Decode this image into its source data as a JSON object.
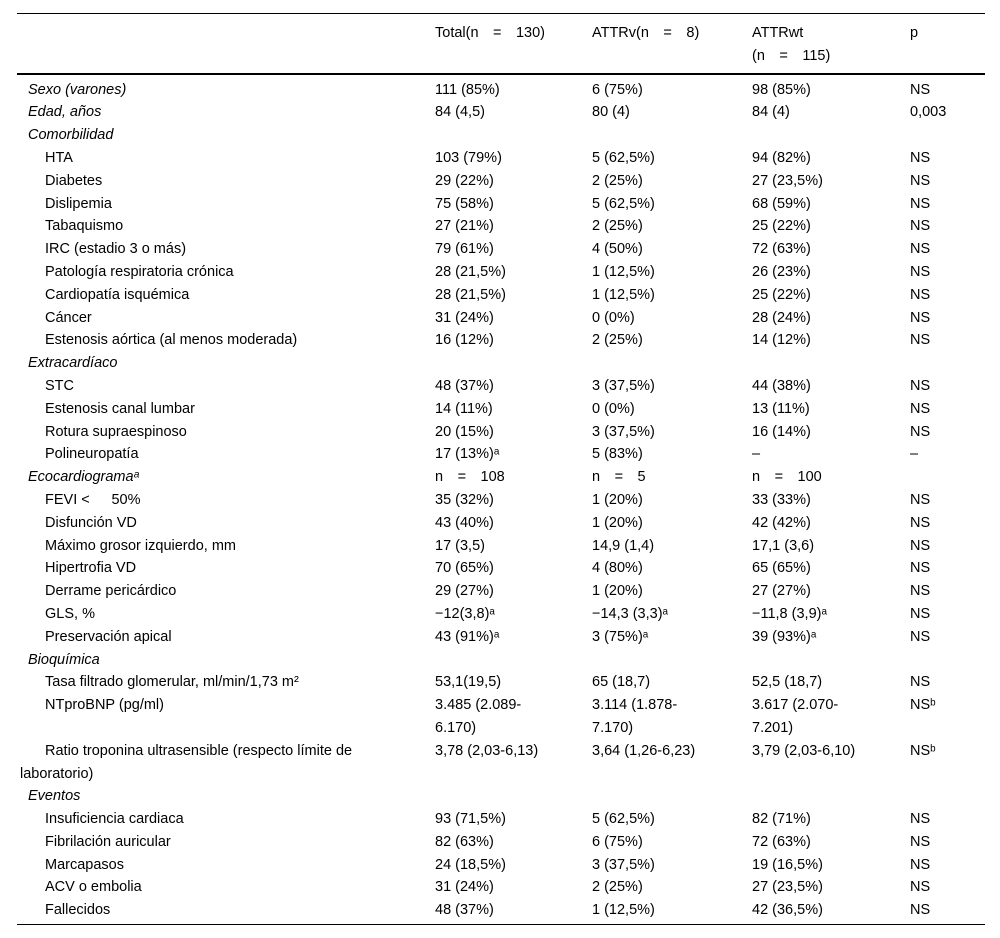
{
  "table": {
    "headers": {
      "label": "",
      "total": "Total(n  =  130)",
      "attrv": "ATTRv(n  =  8)",
      "attrwt": "ATTRwt\n(n  =  115)",
      "p": "p"
    },
    "rows": [
      {
        "label": "Sexo (varones)",
        "type": "group",
        "values": [
          "111 (85%)",
          "6 (75%)",
          "98 (85%)",
          "NS"
        ]
      },
      {
        "label": "Edad, años",
        "type": "group",
        "values": [
          "84 (4,5)",
          "80 (4)",
          "84 (4)",
          "0,003"
        ]
      },
      {
        "label": "Comorbilidad",
        "type": "group",
        "values": [
          "",
          "",
          "",
          ""
        ]
      },
      {
        "label": "HTA",
        "type": "item",
        "values": [
          "103 (79%)",
          "5 (62,5%)",
          "94 (82%)",
          "NS"
        ]
      },
      {
        "label": "Diabetes",
        "type": "item",
        "values": [
          "29 (22%)",
          "2 (25%)",
          "27 (23,5%)",
          "NS"
        ]
      },
      {
        "label": "Dislipemia",
        "type": "item",
        "values": [
          "75 (58%)",
          "5 (62,5%)",
          "68 (59%)",
          "NS"
        ]
      },
      {
        "label": "Tabaquismo",
        "type": "item",
        "values": [
          "27 (21%)",
          "2 (25%)",
          "25 (22%)",
          "NS"
        ]
      },
      {
        "label": "IRC (estadio 3 o más)",
        "type": "item",
        "values": [
          "79 (61%)",
          "4 (50%)",
          "72 (63%)",
          "NS"
        ]
      },
      {
        "label": "Patología respiratoria crónica",
        "type": "item",
        "values": [
          "28 (21,5%)",
          "1 (12,5%)",
          "26 (23%)",
          "NS"
        ]
      },
      {
        "label": "Cardiopatía isquémica",
        "type": "item",
        "values": [
          "28 (21,5%)",
          "1 (12,5%)",
          "25 (22%)",
          "NS"
        ]
      },
      {
        "label": "Cáncer",
        "type": "item",
        "values": [
          "31 (24%)",
          "0 (0%)",
          "28 (24%)",
          "NS"
        ]
      },
      {
        "label": "Estenosis aórtica (al menos moderada)",
        "type": "item",
        "values": [
          "16 (12%)",
          "2 (25%)",
          "14 (12%)",
          "NS"
        ]
      },
      {
        "label": "Extracardíaco",
        "type": "group",
        "values": [
          "",
          "",
          "",
          ""
        ]
      },
      {
        "label": "STC",
        "type": "item",
        "values": [
          "48 (37%)",
          "3 (37,5%)",
          "44 (38%)",
          "NS"
        ]
      },
      {
        "label": "Estenosis canal lumbar",
        "type": "item",
        "values": [
          "14 (11%)",
          "0 (0%)",
          "13 (11%)",
          "NS"
        ]
      },
      {
        "label": "Rotura supraespinoso",
        "type": "item",
        "values": [
          "20 (15%)",
          "3 (37,5%)",
          "16 (14%)",
          "NS"
        ]
      },
      {
        "label": "Polineuropatía",
        "type": "item",
        "values": [
          "17 (13%)ᵃ",
          "5 (83%)",
          "–",
          "–"
        ]
      },
      {
        "label": "Ecocardiogramaᵃ",
        "type": "group",
        "values": [
          "n  =  108",
          "n  =  5",
          "n  =  100",
          ""
        ]
      },
      {
        "label": "FEVI <   50%",
        "type": "item",
        "values": [
          "35 (32%)",
          "1 (20%)",
          "33 (33%)",
          "NS"
        ]
      },
      {
        "label": "Disfunción VD",
        "type": "item",
        "values": [
          "43 (40%)",
          "1 (20%)",
          "42 (42%)",
          "NS"
        ]
      },
      {
        "label": "Máximo grosor izquierdo, mm",
        "type": "item",
        "values": [
          "17 (3,5)",
          "14,9 (1,4)",
          "17,1 (3,6)",
          "NS"
        ]
      },
      {
        "label": "Hipertrofia VD",
        "type": "item",
        "values": [
          "70 (65%)",
          "4 (80%)",
          "65 (65%)",
          "NS"
        ]
      },
      {
        "label": "Derrame pericárdico",
        "type": "item",
        "values": [
          "29 (27%)",
          "1 (20%)",
          "27 (27%)",
          "NS"
        ]
      },
      {
        "label": "GLS, %",
        "type": "item",
        "values": [
          "−12(3,8)ᵃ",
          "−14,3 (3,3)ᵃ",
          "−11,8 (3,9)ᵃ",
          "NS"
        ]
      },
      {
        "label": "Preservación apical",
        "type": "item",
        "values": [
          "43 (91%)ᵃ",
          "3 (75%)ᵃ",
          "39 (93%)ᵃ",
          "NS"
        ]
      },
      {
        "label": "Bioquímica",
        "type": "group",
        "values": [
          "",
          "",
          "",
          ""
        ]
      },
      {
        "label": "Tasa filtrado glomerular, ml/min/1,73 m²",
        "type": "item",
        "values": [
          "53,1(19,5)",
          "65 (18,7)",
          "52,5 (18,7)",
          "NS"
        ]
      },
      {
        "label": "NTproBNP (pg/ml)",
        "type": "item",
        "values": [
          "3.485 (2.089-\n6.170)",
          "3.114 (1.878-\n7.170)",
          "3.617 (2.070-\n7.201)",
          "NSᵇ"
        ]
      },
      {
        "label": "Ratio troponina ultrasensible (respecto límite de\nlaboratorio)",
        "type": "item-wrap",
        "values": [
          "3,78 (2,03-6,13)",
          "3,64 (1,26-6,23)",
          "3,79 (2,03-6,10)",
          "NSᵇ"
        ]
      },
      {
        "label": "Eventos",
        "type": "group",
        "values": [
          "",
          "",
          "",
          ""
        ]
      },
      {
        "label": "Insuficiencia cardiaca",
        "type": "item",
        "values": [
          "93 (71,5%)",
          "5 (62,5%)",
          "82 (71%)",
          "NS"
        ]
      },
      {
        "label": "Fibrilación auricular",
        "type": "item",
        "values": [
          "82 (63%)",
          "6 (75%)",
          "72 (63%)",
          "NS"
        ]
      },
      {
        "label": "Marcapasos",
        "type": "item",
        "values": [
          "24 (18,5%)",
          "3 (37,5%)",
          "19 (16,5%)",
          "NS"
        ]
      },
      {
        "label": "ACV o embolia",
        "type": "item",
        "values": [
          "31 (24%)",
          "2 (25%)",
          "27 (23,5%)",
          "NS"
        ]
      },
      {
        "label": "Fallecidos",
        "type": "item",
        "values": [
          "48 (37%)",
          "1 (12,5%)",
          "42 (36,5%)",
          "NS"
        ]
      }
    ]
  }
}
